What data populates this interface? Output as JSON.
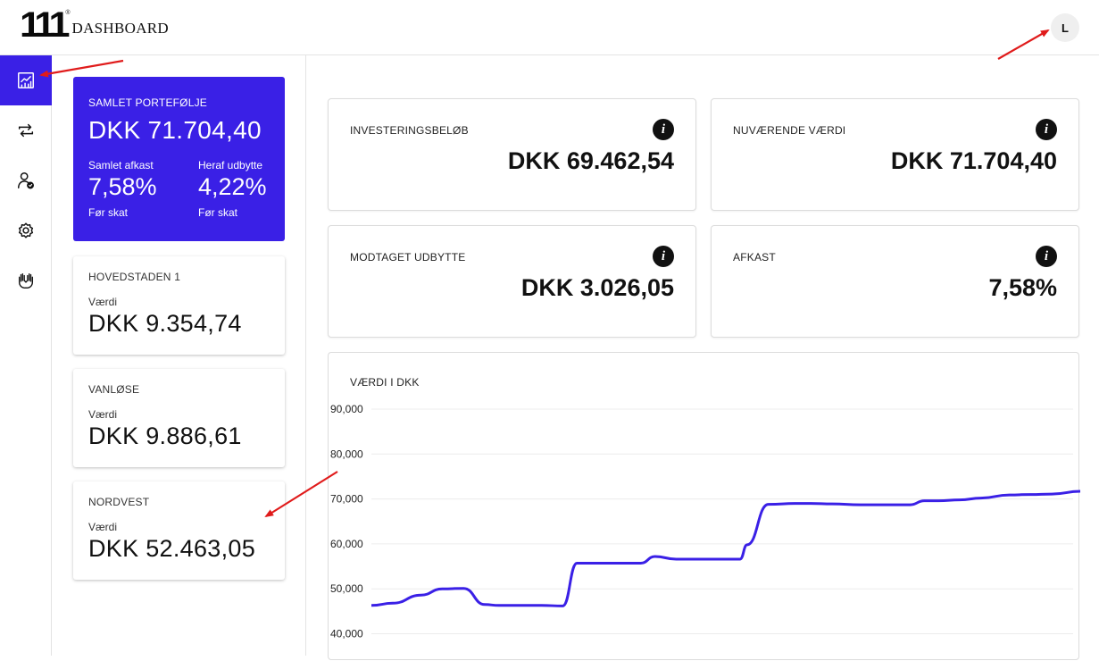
{
  "header": {
    "logo_mark": "111",
    "logo_reg": "®",
    "logo_text": "DASHBOARD",
    "avatar_initial": "L"
  },
  "sidebar": {
    "items": [
      {
        "icon": "chart-icon",
        "active": true
      },
      {
        "icon": "transfer-icon",
        "active": false
      },
      {
        "icon": "user-check-icon",
        "active": false
      },
      {
        "icon": "gear-icon",
        "active": false
      },
      {
        "icon": "hands-icon",
        "active": false
      }
    ]
  },
  "portfolio": {
    "title": "SAMLET PORTEFØLJE",
    "value": "DKK 71.704,40",
    "return_label": "Samlet afkast",
    "return_value": "7,58%",
    "return_note": "Før skat",
    "dividend_label": "Heraf udbytte",
    "dividend_value": "4,22%",
    "dividend_note": "Før skat"
  },
  "locations": [
    {
      "name": "HOVEDSTADEN 1",
      "label": "Værdi",
      "value": "DKK 9.354,74"
    },
    {
      "name": "VANLØSE",
      "label": "Værdi",
      "value": "DKK 9.886,61"
    },
    {
      "name": "NORDVEST",
      "label": "Værdi",
      "value": "DKK 52.463,05"
    }
  ],
  "stats": {
    "invested": {
      "label": "INVESTERINGSBELØB",
      "value": "DKK 69.462,54"
    },
    "current": {
      "label": "NUVÆRENDE VÆRDI",
      "value": "DKK 71.704,40"
    },
    "dividend": {
      "label": "MODTAGET UDBYTTE",
      "value": "DKK 3.026,05"
    },
    "return": {
      "label": "AFKAST",
      "value": "7,58%"
    }
  },
  "colors": {
    "accent": "#3a20e6",
    "annotation": "#e01b1b"
  },
  "chart_data": {
    "type": "line",
    "title": "VÆRDI I DKK",
    "xlabel": "",
    "ylabel": "",
    "ylim": [
      38000,
      90000
    ],
    "y_ticks": [
      "90,000",
      "80,000",
      "70,000",
      "60,000",
      "50,000",
      "40,000"
    ],
    "y_tick_values": [
      90000,
      80000,
      70000,
      60000,
      50000,
      40000
    ],
    "grid": true,
    "series": [
      {
        "color": "#3a20e6",
        "x": [
          0,
          3,
          7,
          10,
          13,
          16,
          18,
          21,
          24,
          27,
          29,
          32,
          35,
          38,
          40,
          43,
          46,
          50,
          52,
          53,
          56,
          60,
          62,
          65,
          69,
          72,
          76,
          78,
          80,
          83,
          86,
          90,
          93,
          96,
          100
        ],
        "values": [
          46300,
          46800,
          48600,
          50000,
          50100,
          46500,
          46300,
          46300,
          46300,
          46200,
          55700,
          55700,
          55700,
          55700,
          57200,
          56600,
          56600,
          56600,
          56600,
          59800,
          68800,
          69000,
          69000,
          68900,
          68700,
          68700,
          68700,
          69600,
          69600,
          69800,
          70200,
          70900,
          71000,
          71100,
          71700
        ]
      }
    ]
  }
}
